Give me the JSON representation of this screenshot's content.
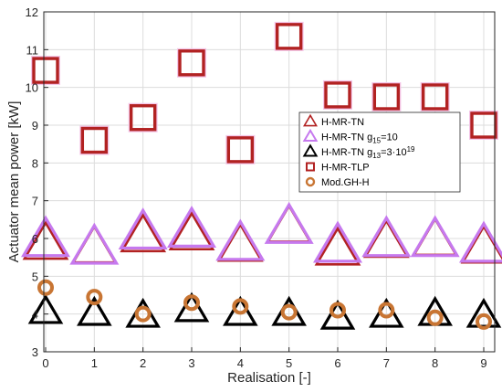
{
  "chart_data": {
    "type": "scatter",
    "xlabel": "Realisation [-]",
    "ylabel": "Actuator mean power [kW]",
    "xlim": [
      0,
      9
    ],
    "ylim": [
      3,
      12
    ],
    "x_ticks": [
      0,
      1,
      2,
      3,
      4,
      5,
      6,
      7,
      8,
      9
    ],
    "y_ticks": [
      3,
      4,
      5,
      6,
      7,
      8,
      9,
      10,
      11,
      12
    ],
    "grid": true,
    "legend_position": "right",
    "x": [
      0,
      1,
      2,
      3,
      4,
      5,
      6,
      7,
      8,
      9
    ],
    "series": [
      {
        "name": "H-MR-TN",
        "marker": "triangle",
        "color": "#b22222",
        "values": [
          5.85,
          5.75,
          6.05,
          6.1,
          5.8,
          6.3,
          5.7,
          5.9,
          5.95,
          5.75
        ]
      },
      {
        "name": "H-MR-TN g15=10",
        "name_parts": {
          "pre": "H-MR-TN g",
          "sub": "15",
          "post": "=10"
        },
        "marker": "triangle",
        "color": "#c679ee",
        "values": [
          5.95,
          5.75,
          6.15,
          6.2,
          5.85,
          6.3,
          5.8,
          5.95,
          5.95,
          5.8
        ]
      },
      {
        "name": "H-MR-TN g13=3·10^19",
        "name_parts": {
          "pre": "H-MR-TN g",
          "sub": "13",
          "post": "=3·10",
          "sup": "19"
        },
        "marker": "triangle",
        "color": "#000000",
        "values": [
          4.05,
          4.0,
          3.95,
          4.1,
          4.0,
          4.0,
          3.9,
          3.95,
          4.0,
          3.95
        ]
      },
      {
        "name": "H-MR-TLP",
        "marker": "square",
        "color": "#b22222",
        "values": [
          10.45,
          8.6,
          9.2,
          10.65,
          8.35,
          11.35,
          9.8,
          9.75,
          9.75,
          9.0
        ]
      },
      {
        "name": "Mod.GH-H",
        "marker": "circle",
        "color": "#c87533",
        "values": [
          4.7,
          4.45,
          4.0,
          4.3,
          4.2,
          4.05,
          4.1,
          4.1,
          3.9,
          3.8
        ]
      }
    ]
  }
}
